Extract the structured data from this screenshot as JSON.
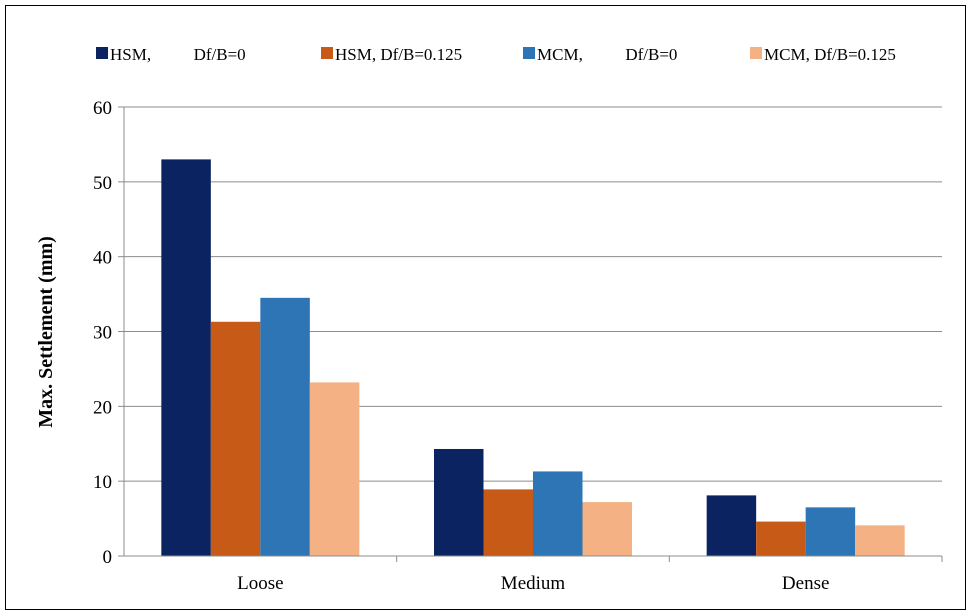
{
  "chart_data": {
    "type": "bar",
    "title": "",
    "xlabel": "",
    "ylabel": "Max. Settlement (mm)",
    "ylim": [
      0,
      60
    ],
    "yticks": [
      0,
      10,
      20,
      30,
      40,
      50,
      60
    ],
    "grid": true,
    "legend_position": "top",
    "categories": [
      "Loose",
      "Medium",
      "Dense"
    ],
    "series": [
      {
        "name": "HSM,          Df/B=0",
        "color": "#0b2461",
        "values": [
          53.0,
          14.3,
          8.1
        ]
      },
      {
        "name": "HSM, Df/B=0.125",
        "color": "#c65a16",
        "values": [
          31.3,
          8.9,
          4.6
        ]
      },
      {
        "name": "MCM,          Df/B=0",
        "color": "#2e75b6",
        "values": [
          34.5,
          11.3,
          6.5
        ]
      },
      {
        "name": "MCM, Df/B=0.125",
        "color": "#f4b183",
        "values": [
          23.2,
          7.2,
          4.1
        ]
      }
    ]
  }
}
